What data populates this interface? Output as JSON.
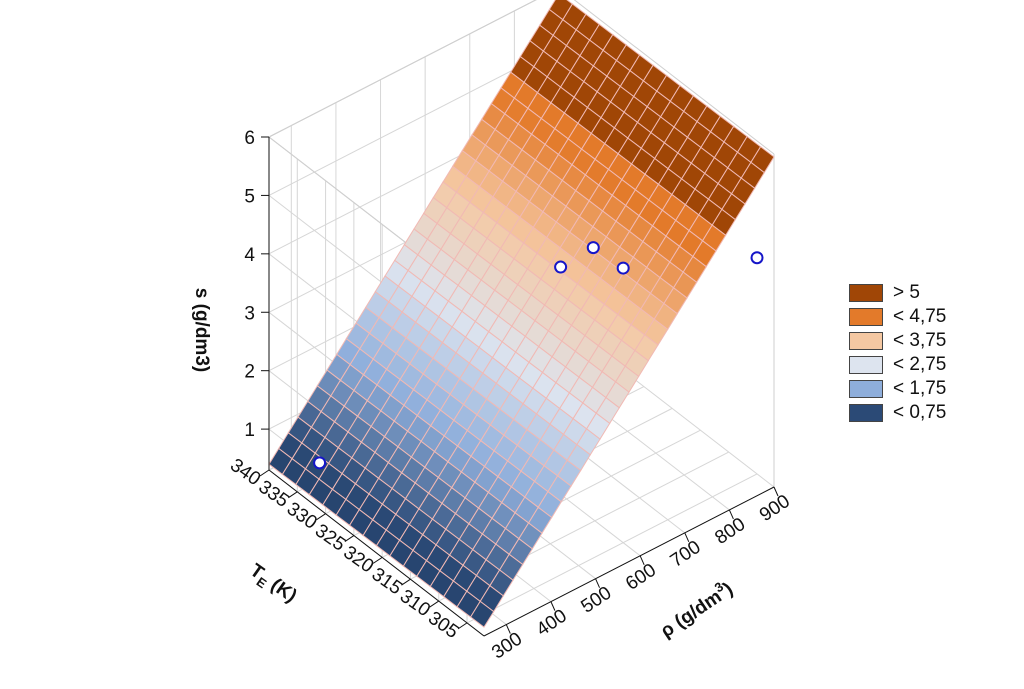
{
  "chart_data": {
    "type": "surface3d",
    "title": "",
    "axes": {
      "x": {
        "label_main": "T",
        "label_sub": "E",
        "label_unit": " (K)",
        "ticks": [
          305,
          310,
          315,
          320,
          325,
          330,
          335,
          340
        ],
        "range": [
          302,
          340
        ]
      },
      "y": {
        "label_main": "ρ (g/dm",
        "label_sup": "3",
        "label_end": ")",
        "ticks": [
          300,
          400,
          500,
          600,
          700,
          800,
          900
        ],
        "range": [
          250,
          900
        ]
      },
      "z": {
        "label": "s (g/dm3)",
        "ticks": [
          1,
          2,
          3,
          4,
          5,
          6
        ],
        "range": [
          0.3,
          6
        ]
      }
    },
    "surface": {
      "grid_rows": 16,
      "grid_cols": 30,
      "z_at_rho_min": 0.4,
      "z_at_rho_max": 5.9
    },
    "points": [
      {
        "T": 335,
        "rho": 300,
        "s": 0.6
      },
      {
        "T": 305,
        "rho": 600,
        "s": 5.0
      },
      {
        "T": 320,
        "rho": 650,
        "s": 3.7
      },
      {
        "T": 330,
        "rho": 850,
        "s": 2.5
      },
      {
        "T": 305,
        "rho": 900,
        "s": 4.0
      }
    ],
    "legend": {
      "position": "right",
      "items": [
        {
          "label": "> 5",
          "color": "#a04606"
        },
        {
          "label": "< 4,75",
          "color": "#e37a2a"
        },
        {
          "label": "< 3,75",
          "color": "#f5c8a2"
        },
        {
          "label": "< 2,75",
          "color": "#dde4ef"
        },
        {
          "label": "< 1,75",
          "color": "#8eaedb"
        },
        {
          "label": "< 0,75",
          "color": "#2b4a76"
        }
      ]
    },
    "colors": {
      "point_stroke": "#1515c8",
      "grid_line": "#f1b9b4",
      "box_line": "#d6d6d6"
    }
  }
}
